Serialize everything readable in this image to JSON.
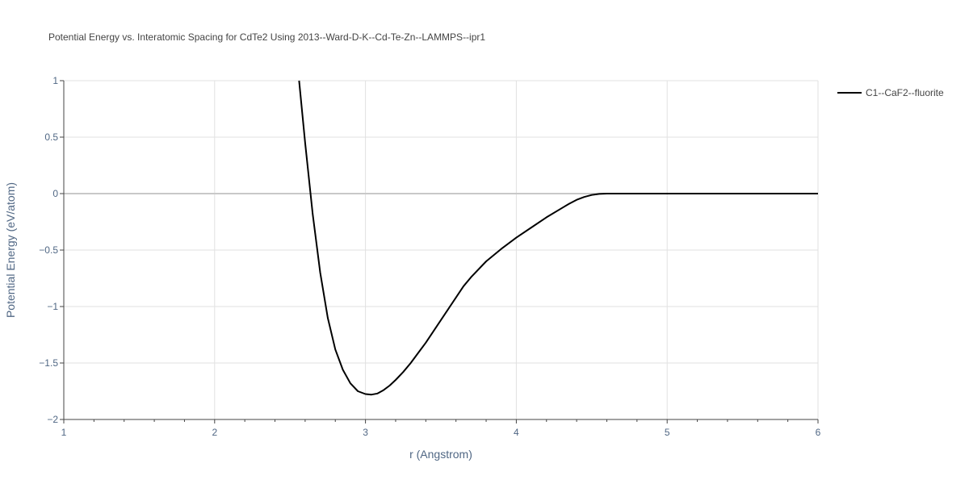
{
  "chart_data": {
    "type": "line",
    "title": "Potential Energy vs. Interatomic Spacing for CdTe2 Using 2013--Ward-D-K--Cd-Te-Zn--LAMMPS--ipr1",
    "xlabel": "r (Angstrom)",
    "ylabel": "Potential Energy (eV/atom)",
    "xlim": [
      1,
      6
    ],
    "ylim": [
      -2,
      1
    ],
    "x_ticks": [
      1,
      2,
      3,
      4,
      5,
      6
    ],
    "x_tick_labels": [
      "1",
      "2",
      "3",
      "4",
      "5",
      "6"
    ],
    "y_ticks": [
      -2,
      -1.5,
      -1,
      -0.5,
      0,
      0.5,
      1
    ],
    "y_tick_labels": [
      "−2",
      "−1.5",
      "−1",
      "−0.5",
      "0",
      "0.5",
      "1"
    ],
    "grid": true,
    "legend_position": "top-right",
    "series": [
      {
        "name": "C1--CaF2--fluorite",
        "color": "#000000",
        "x": [
          2.56,
          2.6,
          2.65,
          2.7,
          2.75,
          2.8,
          2.85,
          2.9,
          2.95,
          3.0,
          3.04,
          3.08,
          3.12,
          3.16,
          3.2,
          3.25,
          3.3,
          3.35,
          3.4,
          3.45,
          3.5,
          3.55,
          3.6,
          3.65,
          3.7,
          3.8,
          3.9,
          4.0,
          4.1,
          4.2,
          4.3,
          4.35,
          4.4,
          4.45,
          4.5,
          4.55,
          4.6,
          4.7,
          5.0,
          5.5,
          6.0
        ],
        "y": [
          1.0,
          0.45,
          -0.18,
          -0.7,
          -1.1,
          -1.38,
          -1.56,
          -1.68,
          -1.75,
          -1.775,
          -1.78,
          -1.77,
          -1.74,
          -1.7,
          -1.65,
          -1.58,
          -1.5,
          -1.41,
          -1.32,
          -1.22,
          -1.12,
          -1.02,
          -0.92,
          -0.82,
          -0.74,
          -0.6,
          -0.49,
          -0.39,
          -0.3,
          -0.21,
          -0.13,
          -0.09,
          -0.055,
          -0.03,
          -0.012,
          -0.003,
          0.0,
          0.0,
          0.0,
          0.0,
          0.0
        ]
      }
    ]
  }
}
